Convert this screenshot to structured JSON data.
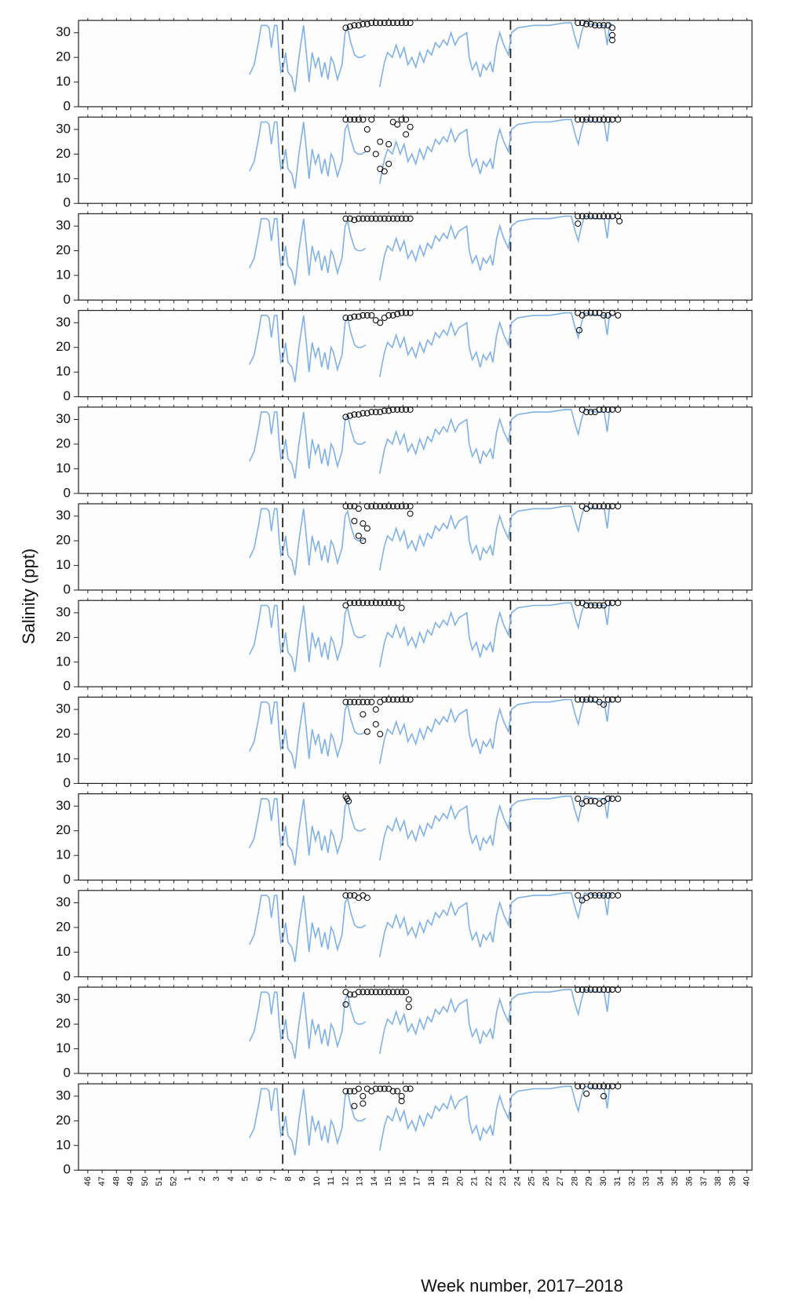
{
  "chart_data": {
    "type": "line",
    "ylabel": "Salinity (ppt)",
    "xlabel": "Week number, 2017–2018",
    "xlim": [
      -0.65,
      46.35
    ],
    "ylim": [
      0,
      35
    ],
    "yticks": [
      0,
      10,
      20,
      30
    ],
    "xticks": [
      {
        "value": 0,
        "label": "46"
      },
      {
        "value": 1,
        "label": "47"
      },
      {
        "value": 2,
        "label": "48"
      },
      {
        "value": 3,
        "label": "49"
      },
      {
        "value": 4,
        "label": "50"
      },
      {
        "value": 5,
        "label": "51"
      },
      {
        "value": 6,
        "label": "52"
      },
      {
        "value": 7,
        "label": "1"
      },
      {
        "value": 8,
        "label": "2"
      },
      {
        "value": 9,
        "label": "3"
      },
      {
        "value": 10,
        "label": "4"
      },
      {
        "value": 11,
        "label": "5"
      },
      {
        "value": 12,
        "label": "6"
      },
      {
        "value": 13,
        "label": "7"
      },
      {
        "value": 14,
        "label": "8"
      },
      {
        "value": 15,
        "label": "9"
      },
      {
        "value": 16,
        "label": "10"
      },
      {
        "value": 17,
        "label": "11"
      },
      {
        "value": 18,
        "label": "12"
      },
      {
        "value": 19,
        "label": "13"
      },
      {
        "value": 20,
        "label": "14"
      },
      {
        "value": 21,
        "label": "15"
      },
      {
        "value": 22,
        "label": "16"
      },
      {
        "value": 23,
        "label": "17"
      },
      {
        "value": 24,
        "label": "18"
      },
      {
        "value": 25,
        "label": "19"
      },
      {
        "value": 26,
        "label": "20"
      },
      {
        "value": 27,
        "label": "21"
      },
      {
        "value": 28,
        "label": "22"
      },
      {
        "value": 29,
        "label": "23"
      },
      {
        "value": 30,
        "label": "24"
      },
      {
        "value": 31,
        "label": "25"
      },
      {
        "value": 32,
        "label": "26"
      },
      {
        "value": 33,
        "label": "27"
      },
      {
        "value": 34,
        "label": "28"
      },
      {
        "value": 35,
        "label": "29"
      },
      {
        "value": 36,
        "label": "30"
      },
      {
        "value": 37,
        "label": "31"
      },
      {
        "value": 38,
        "label": "32"
      },
      {
        "value": 39,
        "label": "33"
      },
      {
        "value": 40,
        "label": "34"
      },
      {
        "value": 41,
        "label": "35"
      },
      {
        "value": 42,
        "label": "36"
      },
      {
        "value": 43,
        "label": "37"
      },
      {
        "value": 44,
        "label": "38"
      },
      {
        "value": 45,
        "label": "39"
      },
      {
        "value": 46,
        "label": "40"
      }
    ],
    "reference_lines": [
      13.6,
      29.5
    ],
    "line": {
      "color": "#7fb1e8",
      "x": [
        11.28,
        11.61,
        11.94,
        12.1,
        12.49,
        12.65,
        12.81,
        13.03,
        13.2,
        13.36,
        13.47,
        13.64,
        13.8,
        13.97,
        14.24,
        14.46,
        14.73,
        15.06,
        15.28,
        15.44,
        15.66,
        15.88,
        16.1,
        16.32,
        16.54,
        16.76,
        16.98,
        17.14,
        17.42,
        17.74,
        17.96,
        18.13,
        18.35,
        18.62,
        18.84,
        19.11,
        19.39,
        19.9,
        20.37,
        20.7,
        20.92,
        21.25,
        21.52,
        21.8,
        22.07,
        22.34,
        22.62,
        22.89,
        23.17,
        23.44,
        23.71,
        23.99,
        24.26,
        24.53,
        24.81,
        25.08,
        25.35,
        25.63,
        25.9,
        26.18,
        26.45,
        26.62,
        26.83,
        27.11,
        27.38,
        27.6,
        27.82,
        28.09,
        28.26,
        28.53,
        28.75,
        29.03,
        29.35,
        29.57,
        30.01,
        31.11,
        32.2,
        33.3,
        33.74,
        34.01,
        34.23,
        34.45,
        34.67,
        35.49,
        36.04,
        36.25,
        36.42,
        36.58
      ],
      "values": [
        13,
        17,
        27,
        33,
        33,
        32,
        24,
        33,
        33,
        20,
        14,
        16,
        22,
        14,
        12,
        6,
        20,
        33,
        20,
        10,
        22,
        16,
        20,
        12,
        18,
        11,
        20,
        18,
        11,
        17,
        30,
        32,
        26,
        21,
        20,
        20,
        21,
        null,
        8,
        18,
        22,
        20,
        25,
        20,
        24,
        17,
        20,
        16,
        22,
        18,
        23,
        21,
        26,
        24,
        27,
        25,
        30,
        25,
        28,
        29,
        30,
        20,
        15,
        18,
        12,
        17,
        15,
        18,
        14,
        25,
        30,
        25,
        21,
        30,
        32,
        33,
        33,
        34,
        34,
        28,
        24,
        30,
        34,
        33,
        33,
        25,
        34,
        33
      ]
    },
    "color": "#000000",
    "panels": [
      {
        "x": [
          18,
          18.3,
          18.6,
          18.9,
          19.2,
          19.5,
          19.8,
          20.1,
          20.4,
          20.7,
          21,
          21.3,
          21.6,
          21.9,
          22.2,
          22.5,
          34.2,
          34.5,
          34.8,
          35.1,
          35.4,
          35.7,
          36,
          36.3,
          36.6,
          36.6,
          36.6
        ],
        "values": [
          32,
          32.5,
          33,
          33,
          33.5,
          33.5,
          34,
          34,
          34,
          34,
          34,
          34,
          34,
          34,
          34,
          34,
          34,
          34,
          33.5,
          33.5,
          33,
          33,
          33,
          33,
          32,
          29,
          27
        ]
      },
      {
        "x": [
          18,
          18.3,
          18.6,
          18.9,
          19.2,
          19.5,
          19.5,
          19.8,
          20.1,
          20.4,
          20.4,
          20.7,
          21,
          21,
          21.3,
          21.6,
          21.9,
          22.2,
          22.2,
          22.5,
          34.2,
          34.5,
          34.8,
          35.1,
          35.4,
          35.7,
          36,
          36.3,
          36.6,
          37
        ],
        "values": [
          34,
          34,
          34,
          34,
          34,
          22,
          30,
          34,
          20,
          14,
          25,
          13,
          16,
          24,
          33,
          32,
          34,
          34,
          28,
          31,
          34,
          34,
          34,
          34,
          34,
          34,
          34,
          34,
          34,
          34
        ]
      },
      {
        "x": [
          18,
          18.3,
          18.6,
          18.9,
          19.2,
          19.5,
          19.8,
          20.1,
          20.4,
          20.7,
          21,
          21.3,
          21.6,
          21.9,
          22.2,
          22.5,
          34.2,
          34.2,
          34.5,
          34.8,
          35.1,
          35.4,
          35.7,
          36,
          36.3,
          36.6,
          37,
          37.1
        ],
        "values": [
          33,
          33,
          32.5,
          33,
          33,
          33,
          33,
          33,
          33,
          33,
          33,
          33,
          33,
          33,
          33,
          33,
          34,
          31,
          34,
          34,
          34,
          34,
          34,
          34,
          34,
          34,
          34,
          32
        ]
      },
      {
        "x": [
          18,
          18.3,
          18.6,
          18.9,
          19.2,
          19.5,
          19.8,
          20.1,
          20.4,
          20.7,
          21,
          21.3,
          21.6,
          21.9,
          22.2,
          22.5,
          34.2,
          34.3,
          34.5,
          34.8,
          35.1,
          35.4,
          35.7,
          36,
          36.3,
          36.6,
          37
        ],
        "values": [
          32,
          32,
          32.5,
          32.5,
          33,
          33,
          33,
          31,
          30,
          32,
          33,
          33,
          33.5,
          34,
          34,
          34,
          34,
          27,
          33,
          34,
          34,
          34,
          34,
          33,
          33,
          34,
          33
        ]
      },
      {
        "x": [
          18,
          18.3,
          18.6,
          18.9,
          19.2,
          19.5,
          19.8,
          20.1,
          20.4,
          20.7,
          21,
          21.3,
          21.6,
          21.9,
          22.2,
          22.5,
          34.5,
          34.8,
          35.1,
          35.4,
          35.7,
          36,
          36.3,
          36.6,
          37
        ],
        "values": [
          31,
          31.5,
          32,
          32,
          32.5,
          32.5,
          33,
          33,
          33,
          33.5,
          33.5,
          34,
          34,
          34,
          34,
          34,
          34,
          33,
          33,
          33,
          34,
          34,
          34,
          34,
          34
        ]
      },
      {
        "x": [
          18,
          18.3,
          18.6,
          18.6,
          18.9,
          18.9,
          19.2,
          19.2,
          19.5,
          19.5,
          19.8,
          20.1,
          20.4,
          20.7,
          21,
          21.3,
          21.6,
          21.9,
          22.2,
          22.5,
          22.5,
          34.5,
          34.8,
          35.1,
          35.4,
          35.7,
          36,
          36.3,
          36.6,
          37
        ],
        "values": [
          34,
          34,
          34,
          28,
          33,
          22,
          27,
          20,
          34,
          25,
          34,
          34,
          34,
          34,
          34,
          34,
          34,
          34,
          34,
          34,
          31,
          34,
          33,
          34,
          34,
          34,
          34,
          34,
          34,
          34
        ]
      },
      {
        "x": [
          18,
          18.3,
          18.6,
          18.9,
          19.2,
          19.5,
          19.8,
          20.1,
          20.4,
          20.7,
          21,
          21.3,
          21.6,
          21.9,
          34.2,
          34.5,
          34.8,
          35.1,
          35.4,
          35.7,
          36,
          36.3,
          36.6,
          37
        ],
        "values": [
          33,
          34,
          34,
          34,
          34,
          34,
          34,
          34,
          34,
          34,
          34,
          34,
          34,
          32,
          34,
          34,
          33,
          33,
          33,
          33,
          33,
          34,
          34,
          34
        ]
      },
      {
        "x": [
          18,
          18.3,
          18.6,
          18.9,
          19.2,
          19.2,
          19.5,
          19.5,
          19.8,
          20.1,
          20.1,
          20.4,
          20.4,
          20.7,
          21,
          21.3,
          21.6,
          21.9,
          22.2,
          22.5,
          34.2,
          34.5,
          34.8,
          35.1,
          35.4,
          35.7,
          36,
          36.3,
          36.6,
          37
        ],
        "values": [
          33,
          33,
          33,
          33,
          33,
          28,
          33,
          21,
          33,
          24,
          30,
          33,
          20,
          34,
          34,
          34,
          34,
          34,
          34,
          34,
          34,
          34,
          34,
          34,
          34,
          33,
          32,
          34,
          34,
          34
        ]
      },
      {
        "x": [
          18,
          18.1,
          18.2,
          34.2,
          34.5,
          34.8,
          35.1,
          35.4,
          35.7,
          36,
          36.3,
          36.6,
          37
        ],
        "values": [
          34,
          33,
          32,
          33,
          31,
          32,
          32,
          32,
          31,
          32,
          33,
          33,
          33
        ]
      },
      {
        "x": [
          18,
          18.3,
          18.6,
          18.9,
          19.2,
          19.5,
          34.2,
          34.5,
          34.8,
          35.1,
          35.4,
          35.7,
          36,
          36.3,
          36.6,
          37
        ],
        "values": [
          33,
          33,
          33,
          32,
          33,
          32,
          33,
          31,
          32,
          33,
          33,
          33,
          33,
          33,
          33,
          33
        ]
      },
      {
        "x": [
          18,
          18,
          18.3,
          18.6,
          18.9,
          19.2,
          19.5,
          19.8,
          20.1,
          20.4,
          20.7,
          21,
          21.3,
          21.6,
          21.9,
          22.2,
          22.4,
          22.4,
          34.2,
          34.5,
          34.8,
          35.1,
          35.4,
          35.7,
          36,
          36.3,
          36.6,
          37
        ],
        "values": [
          33,
          28,
          32,
          32,
          33,
          33,
          33,
          33,
          33,
          33,
          33,
          33,
          33,
          33,
          33,
          33,
          30,
          27,
          34,
          34,
          34,
          34,
          34,
          34,
          34,
          34,
          34,
          34
        ]
      },
      {
        "x": [
          18,
          18.3,
          18.6,
          18.6,
          18.9,
          19.2,
          19.2,
          19.5,
          19.8,
          20.1,
          20.4,
          20.7,
          21,
          21.3,
          21.6,
          21.9,
          21.9,
          22.2,
          22.5,
          34.2,
          34.5,
          34.8,
          35.1,
          35.4,
          35.7,
          36,
          36,
          36.3,
          36.6,
          37
        ],
        "values": [
          32,
          32,
          32,
          26,
          33,
          27,
          30,
          33,
          32,
          33,
          33,
          33,
          33,
          32,
          32,
          30,
          28,
          33,
          33,
          34,
          34,
          31,
          34,
          34,
          34,
          34,
          30,
          34,
          34,
          34
        ]
      }
    ]
  }
}
